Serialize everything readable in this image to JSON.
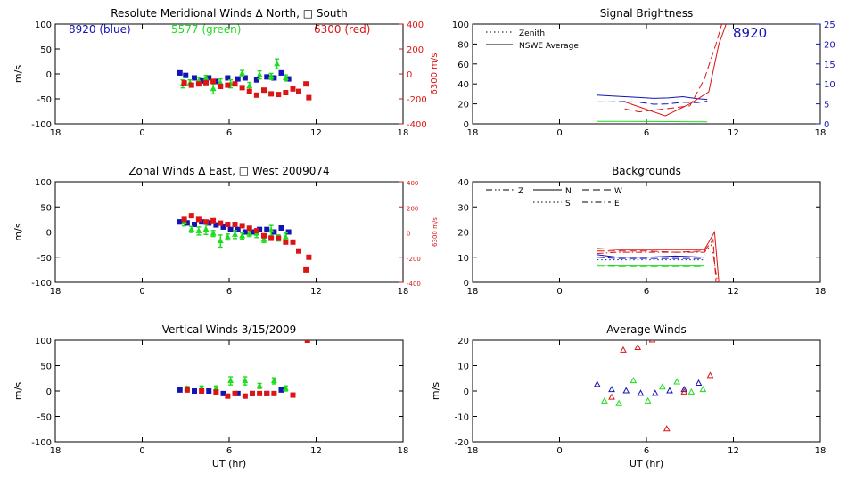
{
  "colors": {
    "axis": "#000000",
    "blue": "#1414b4",
    "green": "#1edc1e",
    "red": "#dc1414"
  },
  "xticks": [
    "18",
    "0",
    "6",
    "12",
    "18"
  ],
  "chart_data": [
    {
      "id": "meridional",
      "type": "scatter",
      "title": "Resolute Meridional Winds Δ North, □ South",
      "xlabel": "",
      "ylabel": "m/s",
      "xlim": [
        -6,
        18
      ],
      "ylim": [
        -100,
        100
      ],
      "yticks": [
        "100",
        "50",
        "0",
        "-50",
        "-100"
      ],
      "y2label": "6300 m/s",
      "y2lim": [
        -400,
        400
      ],
      "y2ticks": [
        "400",
        "200",
        "0",
        "-200",
        "-400"
      ],
      "header_labels": [
        {
          "text": "8920 (blue)",
          "color": "blue"
        },
        {
          "text": "5577 (green)",
          "color": "green"
        },
        {
          "text": "6300 (red)",
          "color": "red"
        }
      ],
      "series": [
        {
          "color": "blue",
          "axis": "left",
          "x": [
            2.6,
            3.0,
            3.6,
            4.1,
            4.6,
            5.1,
            5.9,
            6.6,
            7.1,
            7.9,
            8.6,
            9.1,
            9.6,
            10.1
          ],
          "y": [
            2,
            -3,
            -8,
            -14,
            -8,
            -15,
            -8,
            -10,
            -8,
            -12,
            -6,
            -8,
            2,
            -10
          ],
          "err": [
            4,
            3,
            4,
            3,
            3,
            4,
            3,
            3,
            4,
            3,
            3,
            4,
            4,
            3
          ]
        },
        {
          "color": "green",
          "axis": "left",
          "x": [
            2.8,
            3.3,
            3.9,
            4.4,
            4.9,
            5.4,
            6.1,
            6.9,
            7.4,
            8.1,
            8.9,
            9.3,
            9.9
          ],
          "y": [
            -20,
            -18,
            -14,
            -9,
            -30,
            -18,
            -20,
            1,
            -24,
            -2,
            -5,
            20,
            -8
          ],
          "err": [
            8,
            6,
            7,
            6,
            10,
            8,
            8,
            6,
            7,
            8,
            6,
            10,
            6
          ]
        },
        {
          "color": "red",
          "axis": "right",
          "x": [
            2.9,
            3.4,
            3.9,
            4.4,
            4.9,
            5.4,
            5.9,
            6.4,
            6.9,
            7.4,
            7.9,
            8.4,
            8.9,
            9.4,
            9.9,
            10.4,
            10.8,
            11.3,
            11.5
          ],
          "y": [
            -72,
            -90,
            -80,
            -70,
            -60,
            -100,
            -90,
            -80,
            -110,
            -140,
            -170,
            -130,
            -160,
            -165,
            -150,
            -120,
            -140,
            -80,
            -190
          ],
          "err": [
            10,
            10,
            8,
            8,
            10,
            8,
            8,
            10,
            8,
            10,
            8,
            10,
            8,
            8,
            10,
            8,
            8,
            8,
            0
          ]
        }
      ]
    },
    {
      "id": "signal",
      "type": "line",
      "title": "Signal Brightness",
      "xlabel": "",
      "ylabel": "",
      "xlim": [
        -6,
        18
      ],
      "ylim": [
        0,
        100
      ],
      "yticks": [
        "100",
        "80",
        "60",
        "40",
        "20",
        "0"
      ],
      "y2lim": [
        0,
        25
      ],
      "y2ticks": [
        "25",
        "20",
        "15",
        "10",
        "5",
        "0"
      ],
      "big_label": "8920",
      "legend": [
        "Zenith",
        "NSWE Average"
      ],
      "series": [
        {
          "color": "blue",
          "axis": "right",
          "dash": "solid",
          "x": [
            2.6,
            3.5,
            4.5,
            5.5,
            6.5,
            7.5,
            8.5,
            9.5,
            10.2
          ],
          "y": [
            7.2,
            7.0,
            6.8,
            6.6,
            6.4,
            6.5,
            6.8,
            6.3,
            6.1
          ]
        },
        {
          "color": "blue",
          "axis": "right",
          "dash": "dashed",
          "x": [
            2.6,
            3.5,
            4.5,
            5.5,
            6.5,
            7.5,
            8.5,
            9.5,
            10.2
          ],
          "y": [
            5.5,
            5.5,
            5.6,
            5.4,
            4.9,
            5.0,
            5.4,
            5.3,
            5.7
          ]
        },
        {
          "color": "green",
          "axis": "left",
          "dash": "solid",
          "x": [
            2.6,
            4,
            6,
            8,
            10.2
          ],
          "y": [
            2.5,
            2.5,
            2.3,
            2.2,
            2.0
          ]
        },
        {
          "color": "red",
          "axis": "left",
          "dash": "solid",
          "x": [
            4.5,
            7.3,
            9.0,
            10.3,
            11.0,
            11.5
          ],
          "y": [
            22,
            8,
            20,
            32,
            80,
            100
          ]
        },
        {
          "color": "red",
          "axis": "left",
          "dash": "dashed",
          "x": [
            4.5,
            5.5,
            7.3,
            9.0,
            10.0,
            10.8,
            11.2
          ],
          "y": [
            15,
            12,
            15,
            18,
            45,
            80,
            100
          ]
        }
      ]
    },
    {
      "id": "zonal",
      "type": "scatter",
      "title": "Zonal Winds Δ East, □ West 2009074",
      "xlabel": "",
      "ylabel": "m/s",
      "xlim": [
        -6,
        18
      ],
      "ylim": [
        -100,
        100
      ],
      "yticks": [
        "100",
        "50",
        "0",
        "-50",
        "-100"
      ],
      "y2label": "6300 m/s",
      "y2lim": [
        -400,
        400
      ],
      "y2ticks": [
        "400",
        "200",
        "0",
        "-200",
        "-400"
      ],
      "series": [
        {
          "color": "blue",
          "axis": "left",
          "x": [
            2.6,
            3.1,
            3.6,
            4.1,
            4.6,
            5.1,
            5.6,
            6.1,
            6.6,
            7.1,
            7.6,
            8.1,
            8.6,
            9.1,
            9.6,
            10.1
          ],
          "y": [
            20,
            18,
            15,
            20,
            18,
            14,
            10,
            5,
            5,
            0,
            0,
            5,
            5,
            0,
            8,
            0
          ],
          "err": [
            4,
            4,
            4,
            3,
            4,
            3,
            4,
            3,
            3,
            4,
            3,
            3,
            3,
            4,
            4,
            3
          ]
        },
        {
          "color": "green",
          "axis": "left",
          "x": [
            2.9,
            3.4,
            3.9,
            4.4,
            4.9,
            5.4,
            5.9,
            6.4,
            6.9,
            7.4,
            7.9,
            8.4,
            8.9,
            9.4,
            9.9
          ],
          "y": [
            20,
            5,
            2,
            5,
            -3,
            -18,
            -10,
            -5,
            -8,
            -3,
            -3,
            -15,
            3,
            -12,
            -10
          ],
          "err": [
            8,
            6,
            8,
            10,
            6,
            12,
            6,
            8,
            6,
            6,
            8,
            6,
            10,
            6,
            8
          ]
        },
        {
          "color": "red",
          "axis": "right",
          "x": [
            2.9,
            3.4,
            3.9,
            4.4,
            4.9,
            5.4,
            5.9,
            6.4,
            6.9,
            7.4,
            7.9,
            8.4,
            8.9,
            9.4,
            9.9,
            10.4,
            10.8,
            11.3,
            11.5
          ],
          "y": [
            100,
            130,
            100,
            80,
            90,
            70,
            60,
            60,
            50,
            30,
            10,
            -30,
            -50,
            -50,
            -80,
            -80,
            -150,
            -300,
            -200
          ],
          "err": [
            10,
            10,
            10,
            8,
            8,
            8,
            10,
            10,
            8,
            8,
            10,
            10,
            8,
            10,
            8,
            10,
            8,
            8,
            0
          ]
        }
      ]
    },
    {
      "id": "backgrounds",
      "type": "line",
      "title": "Backgrounds",
      "xlabel": "",
      "ylabel": "",
      "xlim": [
        -6,
        18
      ],
      "ylim": [
        0,
        40
      ],
      "yticks": [
        "40",
        "30",
        "20",
        "10",
        "0"
      ],
      "legend": [
        {
          "label": "Z",
          "dash": "dashdotdot"
        },
        {
          "label": "N",
          "dash": "solid"
        },
        {
          "label": "W",
          "dash": "dashed"
        },
        {
          "label": "S",
          "dash": "dotted"
        },
        {
          "label": "E",
          "dash": "dashdot"
        }
      ],
      "series": [
        {
          "color": "red",
          "dash": "solid",
          "x": [
            2.6,
            4,
            6,
            8,
            10.0,
            10.7,
            11.0
          ],
          "y": [
            13.5,
            13.0,
            13.0,
            13.0,
            13.0,
            20.0,
            0
          ]
        },
        {
          "color": "red",
          "dash": "dashed",
          "x": [
            2.6,
            4,
            6,
            8,
            10.0,
            10.6,
            10.8
          ],
          "y": [
            12.5,
            12.5,
            12.5,
            12.0,
            12.5,
            17.0,
            0
          ]
        },
        {
          "color": "red",
          "dash": "dashdot",
          "x": [
            2.6,
            4,
            6,
            8,
            10.0,
            10.5,
            10.9
          ],
          "y": [
            11.5,
            12.0,
            12.0,
            12.0,
            12.0,
            15.0,
            0
          ]
        },
        {
          "color": "blue",
          "dash": "solid",
          "x": [
            2.6,
            4,
            6,
            8,
            10.0
          ],
          "y": [
            11.0,
            10.0,
            10.0,
            10.5,
            10.0
          ]
        },
        {
          "color": "blue",
          "dash": "dashed",
          "x": [
            2.6,
            4,
            6,
            8,
            10.0
          ],
          "y": [
            10.0,
            9.5,
            9.5,
            9.5,
            9.5
          ]
        },
        {
          "color": "blue",
          "dash": "dotted",
          "x": [
            2.6,
            4,
            6,
            8,
            10.0
          ],
          "y": [
            9.0,
            9.0,
            9.0,
            9.0,
            9.0
          ]
        },
        {
          "color": "green",
          "dash": "solid",
          "x": [
            2.6,
            4,
            6,
            8,
            10.0
          ],
          "y": [
            7.0,
            6.5,
            6.5,
            6.5,
            6.5
          ]
        },
        {
          "color": "green",
          "dash": "dashed",
          "x": [
            2.6,
            4,
            6,
            8,
            10.0
          ],
          "y": [
            6.5,
            6.3,
            6.3,
            6.3,
            6.3
          ]
        }
      ]
    },
    {
      "id": "vertical",
      "type": "scatter",
      "title": "Vertical Winds 3/15/2009",
      "xlabel": "UT (hr)",
      "ylabel": "m/s",
      "xlim": [
        -6,
        18
      ],
      "ylim": [
        -100,
        100
      ],
      "yticks": [
        "100",
        "50",
        "0",
        "-50",
        "-100"
      ],
      "series": [
        {
          "color": "blue",
          "axis": "left",
          "x": [
            2.6,
            3.6,
            4.6,
            5.6,
            6.6,
            7.6,
            8.6,
            9.6
          ],
          "y": [
            2,
            0,
            0,
            -5,
            -5,
            -5,
            -5,
            2
          ],
          "err": [
            3,
            3,
            3,
            3,
            3,
            3,
            3,
            3
          ]
        },
        {
          "color": "green",
          "axis": "left",
          "x": [
            3.1,
            4.1,
            5.1,
            6.1,
            7.1,
            8.1,
            9.1,
            9.9
          ],
          "y": [
            5,
            5,
            5,
            20,
            20,
            10,
            20,
            5
          ],
          "err": [
            4,
            5,
            5,
            8,
            8,
            5,
            6,
            5
          ]
        },
        {
          "color": "red",
          "axis": "left",
          "x": [
            3.1,
            4.1,
            5.1,
            5.9,
            6.4,
            7.1,
            7.6,
            8.1,
            8.6,
            9.1,
            10.4,
            11.4
          ],
          "y": [
            2,
            0,
            -2,
            -10,
            -5,
            -10,
            -5,
            -5,
            -5,
            -5,
            -8,
            100
          ],
          "err": [
            3,
            3,
            3,
            3,
            3,
            3,
            3,
            3,
            3,
            3,
            3,
            0
          ]
        }
      ]
    },
    {
      "id": "average",
      "type": "scatter",
      "title": "Average Winds",
      "xlabel": "UT (hr)",
      "ylabel": "m/s",
      "xlim": [
        -6,
        18
      ],
      "ylim": [
        -20,
        20
      ],
      "yticks": [
        "20",
        "10",
        "0",
        "-10",
        "-20"
      ],
      "series": [
        {
          "color": "blue",
          "marker": "triangle",
          "x": [
            2.6,
            3.6,
            4.6,
            5.6,
            6.6,
            7.6,
            8.6,
            9.6
          ],
          "y": [
            2.5,
            0.5,
            0.0,
            -1.0,
            -1.0,
            0.0,
            0.5,
            3.0
          ]
        },
        {
          "color": "green",
          "marker": "triangle",
          "x": [
            3.1,
            4.1,
            5.1,
            6.1,
            7.1,
            8.1,
            9.1,
            9.9
          ],
          "y": [
            -4.0,
            -5.0,
            4.0,
            -4.0,
            1.5,
            3.5,
            -0.5,
            0.5
          ]
        },
        {
          "color": "red",
          "marker": "triangle",
          "x": [
            3.6,
            4.4,
            5.4,
            6.4,
            7.4,
            8.6,
            10.4
          ],
          "y": [
            -2.5,
            16.0,
            17.0,
            20.0,
            -15.0,
            -0.5,
            6.0
          ]
        }
      ]
    }
  ]
}
